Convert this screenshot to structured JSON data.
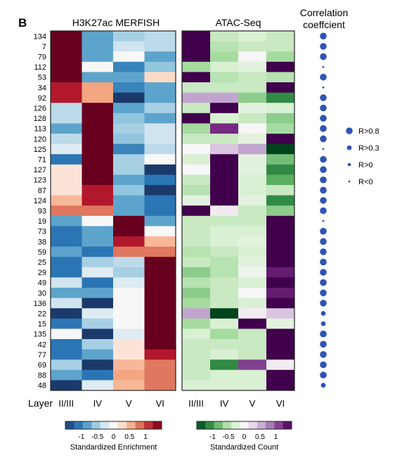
{
  "panel_label": "B",
  "chart_data": {
    "type": "heatmap",
    "row_labels": [
      "134",
      "7",
      "79",
      "112",
      "53",
      "34",
      "92",
      "126",
      "128",
      "113",
      "120",
      "125",
      "71",
      "127",
      "123",
      "87",
      "124",
      "93",
      "19",
      "73",
      "38",
      "59",
      "25",
      "29",
      "49",
      "30",
      "136",
      "22",
      "15",
      "135",
      "42",
      "77",
      "69",
      "88",
      "48"
    ],
    "layer_axis_label": "Layer",
    "layers": [
      "II/III",
      "IV",
      "V",
      "VI"
    ],
    "merfish": {
      "title": "H3K27ac MERFISH",
      "colorbar_label": "Standardized Enrichment",
      "colorbar_ticks": [
        "-1",
        "-0.5",
        "0",
        "0.5",
        "1"
      ],
      "colorbar_tick_values": [
        -1,
        -0.5,
        0,
        0.5,
        1
      ],
      "range": [
        -1.5,
        1.5
      ],
      "scale_colors": [
        "#1b3a6b",
        "#2166ac",
        "#4393c3",
        "#92c5de",
        "#d1e5f0",
        "#f7f7f7",
        "#fddbc7",
        "#f4a582",
        "#d6604d",
        "#b2182b",
        "#67001f"
      ],
      "values": [
        [
          1.5,
          -0.8,
          -0.5,
          -0.4
        ],
        [
          1.5,
          -0.8,
          -0.3,
          -0.4
        ],
        [
          1.5,
          -0.8,
          0.0,
          -0.8
        ],
        [
          1.5,
          0.0,
          -1.0,
          -0.6
        ],
        [
          1.5,
          -0.8,
          -0.8,
          0.3
        ],
        [
          1.2,
          0.6,
          -1.0,
          -0.8
        ],
        [
          1.2,
          0.6,
          -1.5,
          -0.8
        ],
        [
          -0.4,
          1.5,
          -0.8,
          -0.5
        ],
        [
          -0.4,
          1.5,
          -0.6,
          -0.8
        ],
        [
          -0.8,
          1.5,
          -0.5,
          -0.3
        ],
        [
          -0.4,
          1.5,
          -0.6,
          -0.3
        ],
        [
          -0.2,
          1.5,
          -1.0,
          -0.4
        ],
        [
          -1.1,
          1.5,
          -0.5,
          0.0
        ],
        [
          0.2,
          1.5,
          -0.5,
          -1.5
        ],
        [
          0.2,
          1.5,
          -0.8,
          -1.1
        ],
        [
          0.2,
          1.2,
          -0.6,
          -1.5
        ],
        [
          0.5,
          1.2,
          -0.8,
          -1.1
        ],
        [
          0.8,
          0.8,
          -0.8,
          -1.1
        ],
        [
          -0.8,
          0.0,
          1.5,
          -0.8
        ],
        [
          -1.1,
          -0.8,
          1.5,
          0.0
        ],
        [
          -1.1,
          -0.8,
          1.2,
          0.5
        ],
        [
          -0.8,
          -1.1,
          0.8,
          0.8
        ],
        [
          -1.1,
          -0.5,
          -0.4,
          1.5
        ],
        [
          -1.1,
          -0.2,
          -0.5,
          1.5
        ],
        [
          -0.3,
          -1.1,
          -0.2,
          1.5
        ],
        [
          -0.8,
          -0.8,
          0.0,
          1.5
        ],
        [
          -0.3,
          -1.5,
          0.0,
          1.5
        ],
        [
          -1.5,
          -0.2,
          0.0,
          1.5
        ],
        [
          -1.1,
          -0.5,
          0.0,
          1.5
        ],
        [
          0.0,
          -1.5,
          -0.2,
          1.5
        ],
        [
          -1.1,
          -0.5,
          0.2,
          1.5
        ],
        [
          -1.1,
          -0.8,
          0.2,
          1.2
        ],
        [
          -0.5,
          -1.5,
          0.5,
          0.8
        ],
        [
          -0.8,
          -1.1,
          0.6,
          0.8
        ],
        [
          -1.5,
          -0.2,
          0.5,
          0.8
        ]
      ]
    },
    "atac": {
      "title": "ATAC-Seq",
      "colorbar_label": "Standardized Count",
      "colorbar_ticks": [
        "-1",
        "-0.5",
        "0",
        "0.5",
        "1"
      ],
      "colorbar_tick_values": [
        -1,
        -0.5,
        0,
        0.5,
        1
      ],
      "range": [
        -1.5,
        1.5
      ],
      "scale_colors": [
        "#00441b",
        "#1b7837",
        "#5aae61",
        "#a6dba0",
        "#d9f0d3",
        "#f7f7f7",
        "#e7d4e8",
        "#c2a5cf",
        "#9970ab",
        "#762a83",
        "#40004b"
      ],
      "values": [
        [
          1.5,
          -0.4,
          -0.3,
          -0.4
        ],
        [
          1.5,
          -0.5,
          -0.4,
          -0.4
        ],
        [
          1.5,
          -0.6,
          0.0,
          -0.6
        ],
        [
          -0.6,
          -0.3,
          -0.2,
          1.5
        ],
        [
          1.5,
          -0.5,
          -0.4,
          -0.5
        ],
        [
          -0.4,
          -0.4,
          -0.4,
          1.5
        ],
        [
          0.6,
          0.6,
          -0.7,
          -1.1
        ],
        [
          -0.4,
          1.5,
          -0.2,
          -0.3
        ],
        [
          1.5,
          -0.3,
          -0.4,
          -0.7
        ],
        [
          -0.6,
          1.2,
          0.0,
          -0.6
        ],
        [
          -0.4,
          -0.4,
          -0.2,
          1.5
        ],
        [
          0.0,
          0.4,
          0.6,
          -1.5
        ],
        [
          -0.3,
          1.5,
          -0.2,
          -0.8
        ],
        [
          0.0,
          1.5,
          -0.2,
          -1.1
        ],
        [
          -0.4,
          1.5,
          -0.3,
          -0.9
        ],
        [
          -0.5,
          1.5,
          -0.3,
          -0.4
        ],
        [
          -0.2,
          1.5,
          -0.2,
          -1.1
        ],
        [
          1.5,
          0.1,
          -0.4,
          -0.7
        ],
        [
          -0.4,
          -0.4,
          -0.4,
          1.5
        ],
        [
          -0.4,
          -0.3,
          -0.3,
          1.5
        ],
        [
          -0.4,
          -0.3,
          -0.2,
          1.5
        ],
        [
          -0.5,
          -0.4,
          -0.3,
          1.5
        ],
        [
          -0.4,
          -0.5,
          -0.2,
          1.5
        ],
        [
          -0.7,
          -0.5,
          -0.1,
          1.3
        ],
        [
          -0.5,
          -0.4,
          -0.3,
          1.5
        ],
        [
          -0.7,
          -0.4,
          0.0,
          1.3
        ],
        [
          -0.6,
          -0.4,
          -0.3,
          1.5
        ],
        [
          0.6,
          -1.5,
          0.1,
          0.4
        ],
        [
          -0.6,
          -0.3,
          1.5,
          -0.2
        ],
        [
          -0.3,
          -0.6,
          -0.4,
          1.5
        ],
        [
          -0.4,
          -0.4,
          -0.4,
          1.5
        ],
        [
          -0.4,
          -0.3,
          -0.4,
          1.5
        ],
        [
          -0.4,
          -1.1,
          1.1,
          0.1
        ],
        [
          -0.4,
          -0.3,
          -0.3,
          1.5
        ],
        [
          -0.3,
          -0.3,
          -0.3,
          1.5
        ]
      ]
    },
    "correlation": {
      "title_lines": [
        "Correlation",
        "coeffcient"
      ],
      "color": "#2e55b5",
      "values": [
        0.9,
        0.9,
        0.9,
        -0.2,
        0.9,
        -0.2,
        0.9,
        0.9,
        0.9,
        0.9,
        0.9,
        -0.2,
        0.9,
        0.9,
        0.9,
        0.9,
        0.9,
        0.9,
        -0.2,
        0.9,
        0.9,
        0.9,
        0.9,
        0.9,
        0.9,
        0.9,
        0.9,
        0.5,
        0.5,
        0.9,
        0.9,
        0.9,
        0.9,
        0.9,
        0.5
      ],
      "legend": [
        {
          "label": "R>0.8",
          "min": 0.8
        },
        {
          "label": "R>0.3",
          "min": 0.3
        },
        {
          "label": "R>0",
          "min": 0.0
        },
        {
          "label": "R<0",
          "min": -1.0
        }
      ]
    }
  }
}
